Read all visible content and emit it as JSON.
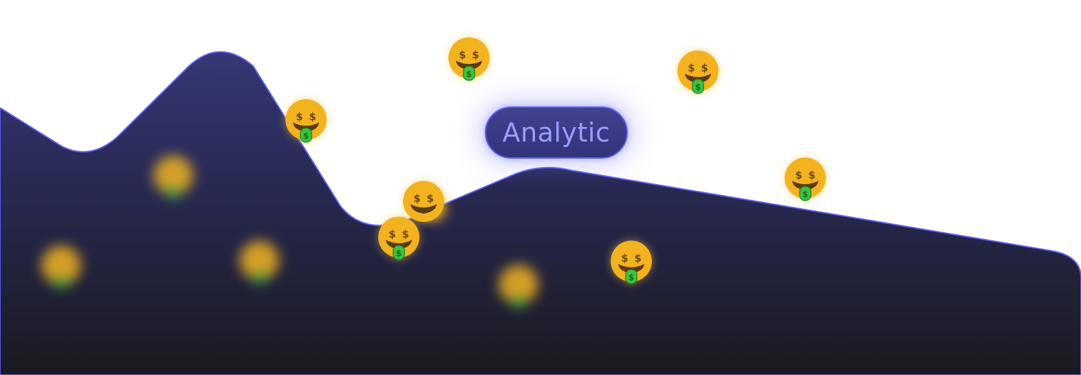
{
  "badge": {
    "label": "Analytic"
  },
  "icons": {
    "emoji": "money-mouth-face-icon"
  },
  "colors": {
    "wave_top": "#343570",
    "wave_bottom": "#1b1b20",
    "wave_stroke": "#5b5ff2",
    "badge_text": "#9a9cff",
    "badge_border": "#5c60f0"
  }
}
